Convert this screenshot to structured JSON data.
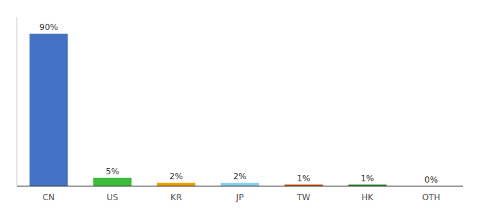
{
  "chart_data": {
    "type": "bar",
    "categories": [
      "CN",
      "US",
      "KR",
      "JP",
      "TW",
      "HK",
      "OTH"
    ],
    "values": [
      90,
      5,
      2,
      2,
      1,
      1,
      0
    ],
    "value_labels": [
      "90%",
      "5%",
      "2%",
      "2%",
      "1%",
      "1%",
      "0%"
    ],
    "colors": [
      "#4472C4",
      "#3DBD3D",
      "#E8A000",
      "#87CEEB",
      "#C85000",
      "#2E8B2E",
      "#BBBBBB"
    ],
    "ylim": [
      0,
      100
    ],
    "data_labels": true,
    "tick_labels": "x"
  }
}
